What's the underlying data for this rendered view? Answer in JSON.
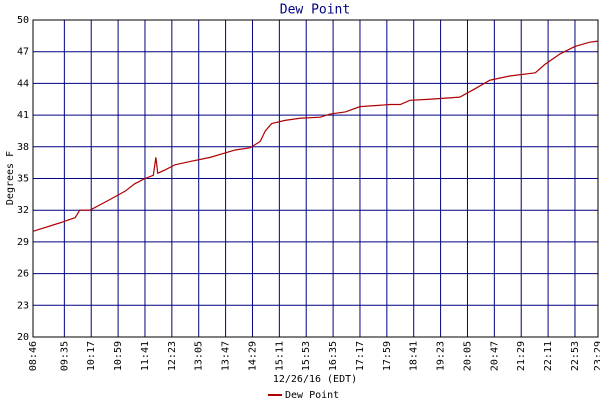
{
  "chart_data": {
    "type": "line",
    "title": "Dew Point",
    "xlabel": "12/26/16 (EDT)",
    "ylabel": "Degrees F",
    "x": [
      526,
      568,
      592,
      599,
      615,
      646,
      670,
      685,
      701,
      714,
      718,
      721,
      732,
      748,
      771,
      803,
      842,
      865,
      881,
      889,
      899,
      920,
      943,
      975,
      990,
      1014,
      1037,
      1084,
      1100,
      1115,
      1146,
      1193,
      1217,
      1240,
      1271,
      1311,
      1326,
      1350,
      1373,
      1396,
      1409
    ],
    "series": [
      {
        "name": "Dew Point",
        "color": "#b00000",
        "values": [
          30.0,
          30.8,
          31.3,
          32.0,
          32.0,
          33.0,
          33.8,
          34.5,
          35.0,
          35.3,
          37.0,
          35.5,
          35.8,
          36.3,
          36.6,
          37.0,
          37.7,
          37.9,
          38.5,
          39.5,
          40.2,
          40.5,
          40.7,
          40.8,
          41.1,
          41.3,
          41.8,
          42.0,
          42.0,
          42.4,
          42.5,
          42.7,
          43.5,
          44.3,
          44.7,
          45.0,
          45.8,
          46.8,
          47.5,
          47.9,
          48.0
        ]
      }
    ],
    "xlim": [
      526,
      1409
    ],
    "xticks": [
      {
        "value": 526,
        "label": "08:46"
      },
      {
        "value": 575,
        "label": "09:35"
      },
      {
        "value": 617,
        "label": "10:17"
      },
      {
        "value": 659,
        "label": "10:59"
      },
      {
        "value": 701,
        "label": "11:41"
      },
      {
        "value": 743,
        "label": "12:23"
      },
      {
        "value": 785,
        "label": "13:05"
      },
      {
        "value": 827,
        "label": "13:47"
      },
      {
        "value": 869,
        "label": "14:29"
      },
      {
        "value": 911,
        "label": "15:11"
      },
      {
        "value": 953,
        "label": "15:53"
      },
      {
        "value": 995,
        "label": "16:35"
      },
      {
        "value": 1037,
        "label": "17:17"
      },
      {
        "value": 1079,
        "label": "17:59"
      },
      {
        "value": 1121,
        "label": "18:41"
      },
      {
        "value": 1163,
        "label": "19:23"
      },
      {
        "value": 1205,
        "label": "20:05"
      },
      {
        "value": 1247,
        "label": "20:47"
      },
      {
        "value": 1289,
        "label": "21:29"
      },
      {
        "value": 1331,
        "label": "22:11"
      },
      {
        "value": 1373,
        "label": "22:53"
      },
      {
        "value": 1409,
        "label": "23:29"
      }
    ],
    "ylim": [
      20,
      50
    ],
    "yticks": [
      20,
      23,
      26,
      29,
      32,
      35,
      38,
      41,
      44,
      47,
      50
    ],
    "grid": true,
    "grid_color": "#000080"
  }
}
